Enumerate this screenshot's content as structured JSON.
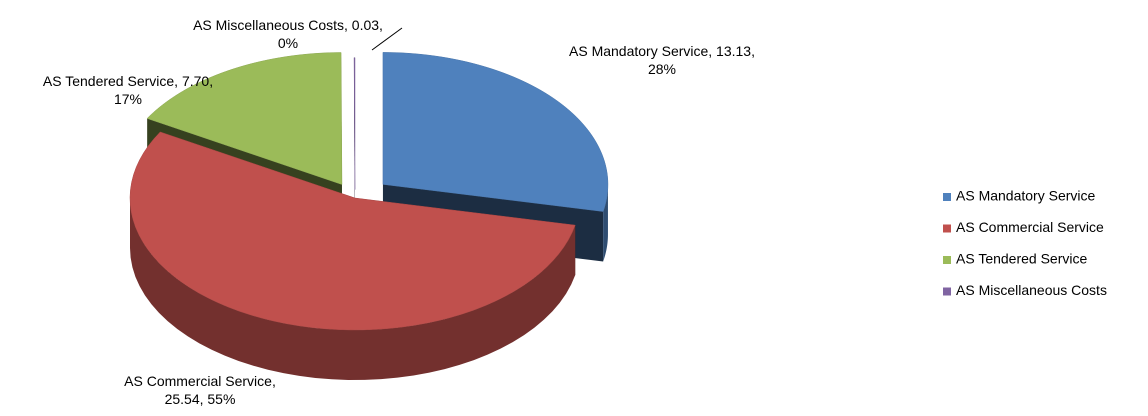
{
  "chart_data": {
    "type": "pie3d",
    "categories": [
      "AS Mandatory Service",
      "AS Commercial Service",
      "AS Tendered Service",
      "AS Miscellaneous Costs"
    ],
    "values": [
      13.13,
      25.54,
      7.7,
      0.03
    ],
    "value_labels": [
      "AS Mandatory Service, 13.13, 28%",
      "AS Commercial Service, 25.54, 55%",
      "AS Tendered Service, 7.70, 17%",
      "AS Miscellaneous Costs, 0.03, 0%"
    ],
    "colors": [
      "#4f81bd",
      "#c0504d",
      "#9bbb59",
      "#8064a2"
    ],
    "legend": "right"
  }
}
